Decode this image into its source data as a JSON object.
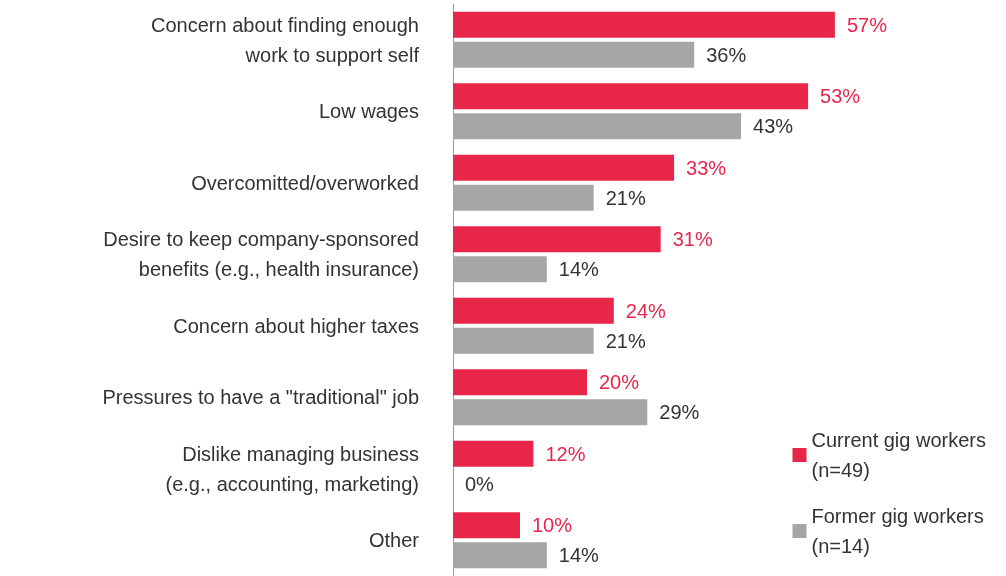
{
  "chart_data": {
    "type": "bar",
    "orientation": "horizontal",
    "legend": "bottom right",
    "categories": [
      "Concern about finding enough\nwork to support self",
      "Low wages",
      "Overcomitted/overworked",
      "Desire to keep company-sponsored\nbenefits (e.g., health insurance)",
      "Concern about higher taxes",
      "Pressures to have a \"traditional\" job",
      "Dislike managing business\n(e.g., accounting, marketing)",
      "Other"
    ],
    "series": [
      {
        "name": "Current gig workers\n(n=49)",
        "color": "#e8264a",
        "values": [
          57,
          53,
          33,
          31,
          24,
          20,
          12,
          10
        ],
        "value_labels": [
          "57%",
          "53%",
          "33%",
          "31%",
          "24%",
          "20%",
          "12%",
          "10%"
        ]
      },
      {
        "name": "Former gig workers\n(n=14)",
        "color": "#a6a6a6",
        "values": [
          36,
          43,
          21,
          14,
          21,
          29,
          0,
          14
        ],
        "value_labels": [
          "36%",
          "43%",
          "21%",
          "14%",
          "21%",
          "29%",
          "0%",
          "14%"
        ]
      }
    ]
  }
}
